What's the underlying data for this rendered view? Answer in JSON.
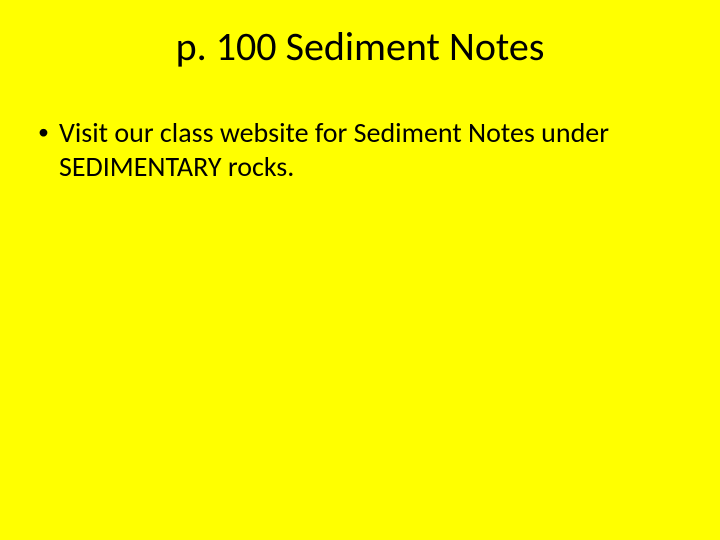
{
  "slide": {
    "type": "infographic",
    "background_color": "#ffff00",
    "text_color": "#000000",
    "title": {
      "text": "p. 100 Sediment Notes",
      "font_size": 40,
      "font_weight": 400,
      "align": "center"
    },
    "bullets": [
      {
        "marker": "•",
        "text": "Visit our class website for Sediment Notes under SEDIMENTARY rocks.",
        "font_size": 28
      }
    ]
  }
}
